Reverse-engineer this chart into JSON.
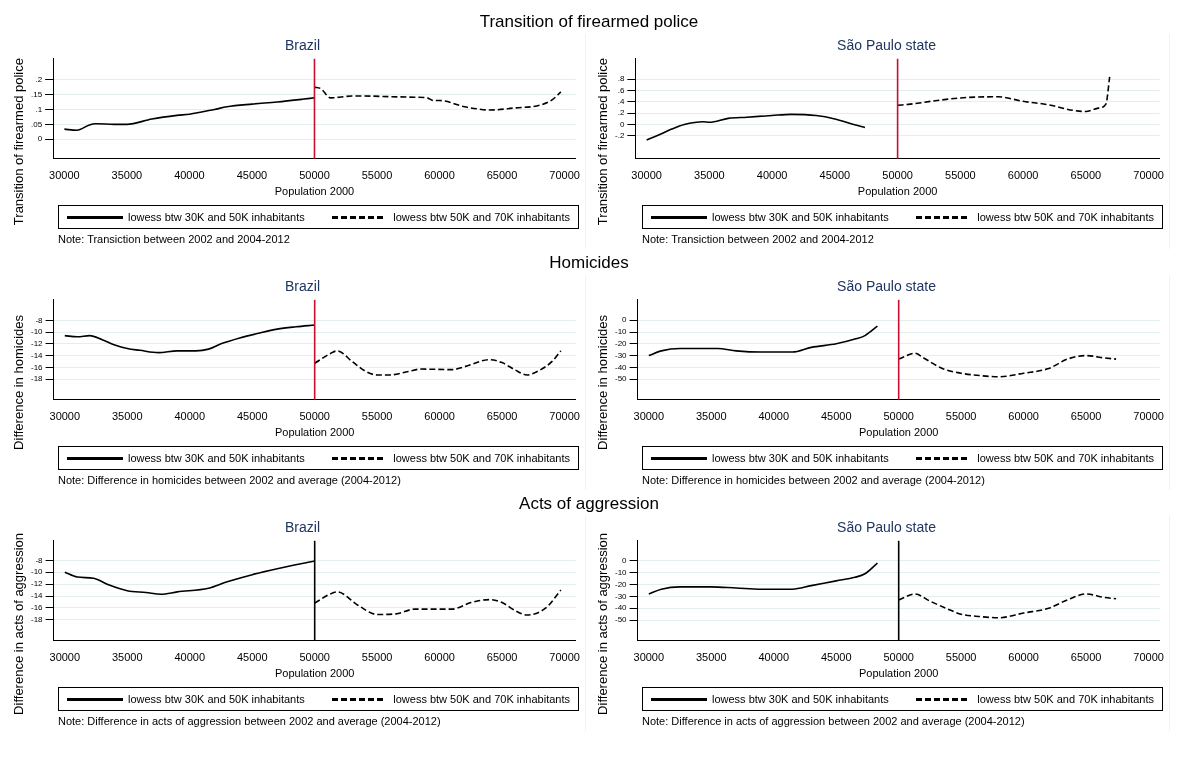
{
  "chart_data": [
    {
      "type": "line",
      "title": "Transition of firearmed police",
      "subtitle": "Brazil",
      "xlabel": "Population 2000",
      "ylabel": "Transition of firearmed police",
      "xlim": [
        29100,
        70900
      ],
      "xticks": [
        30000,
        35000,
        40000,
        45000,
        50000,
        55000,
        60000,
        65000,
        70000
      ],
      "ylim": [
        -0.065,
        0.27
      ],
      "yticks": [
        0,
        {
          "value": 0.05,
          "label": ".05"
        },
        {
          "value": 0.1,
          "label": ".1"
        },
        {
          "value": 0.15,
          "label": ".15"
        },
        {
          "value": 0.2,
          "label": ".2"
        }
      ],
      "grid": "y",
      "legend": "bottom",
      "annotations": [
        "Note: Transiction between 2002 and 2004-2012"
      ],
      "ref_lines": [
        {
          "axis": "x",
          "value": 50000,
          "color": "#c8102e"
        }
      ],
      "series": [
        {
          "name": "lowess btw 30K and 50K inhabitants",
          "color": "#000000",
          "line_style": "solid",
          "x": [
            30000,
            31000,
            32000,
            32500,
            34000,
            35000,
            37000,
            39000,
            40000,
            42000,
            43000,
            45000,
            47000,
            49000,
            50000
          ],
          "values": [
            0.034,
            0.03,
            0.048,
            0.052,
            0.05,
            0.05,
            0.068,
            0.08,
            0.084,
            0.1,
            0.109,
            0.118,
            0.125,
            0.134,
            0.139
          ]
        },
        {
          "name": "lowess btw 50K and 70K inhabitants",
          "color": "#000000",
          "line_style": "dashed",
          "x": [
            50000,
            50500,
            51300,
            53000,
            54000,
            56000,
            58000,
            59000,
            59500,
            60000,
            62000,
            63000,
            64000,
            66000,
            68000,
            69000,
            69700
          ],
          "values": [
            0.175,
            0.17,
            0.139,
            0.145,
            0.145,
            0.143,
            0.141,
            0.139,
            0.13,
            0.13,
            0.109,
            0.102,
            0.098,
            0.105,
            0.114,
            0.132,
            0.159
          ]
        }
      ]
    },
    {
      "type": "line",
      "subtitle": "São Paulo state",
      "xlabel": "Population 2000",
      "ylabel": "Transition of firearmed police",
      "xlim": [
        29100,
        70900
      ],
      "xticks": [
        30000,
        35000,
        40000,
        45000,
        50000,
        55000,
        60000,
        65000,
        70000
      ],
      "ylim": [
        -0.6,
        1.16
      ],
      "yticks": [
        {
          "value": -0.2,
          "label": "-.2"
        },
        0,
        {
          "value": 0.2,
          "label": ".2"
        },
        {
          "value": 0.4,
          "label": ".4"
        },
        {
          "value": 0.6,
          "label": ".6"
        },
        {
          "value": 0.8,
          "label": ".8"
        }
      ],
      "grid": "y",
      "legend": "bottom",
      "annotations": [
        "Note: Transiction between 2002 and 2004-2012"
      ],
      "ref_lines": [
        {
          "axis": "x",
          "value": 50000,
          "color": "#c8102e"
        }
      ],
      "series": [
        {
          "name": "lowess btw 30K and 50K inhabitants",
          "color": "#000000",
          "line_style": "solid",
          "x": [
            30000,
            31000,
            32000,
            33000,
            34500,
            35000,
            36500,
            38000,
            40000,
            41500,
            43500,
            45000,
            46500,
            47400
          ],
          "values": [
            -0.27,
            -0.18,
            -0.08,
            0,
            0.05,
            0.04,
            0.11,
            0.13,
            0.16,
            0.18,
            0.16,
            0.1,
            0,
            -0.05
          ]
        },
        {
          "name": "lowess btw 50K and 70K inhabitants",
          "color": "#000000",
          "line_style": "dashed",
          "x": [
            50000,
            51000,
            53000,
            55000,
            58000,
            60000,
            62000,
            64000,
            65000,
            66000,
            66600,
            66900
          ],
          "values": [
            0.34,
            0.36,
            0.42,
            0.47,
            0.49,
            0.41,
            0.35,
            0.25,
            0.23,
            0.29,
            0.36,
            0.84
          ]
        }
      ]
    },
    {
      "type": "line",
      "title": "Homicides",
      "subtitle": "Brazil",
      "xlabel": "Population 2000",
      "ylabel": "Difference in homicides",
      "xlim": [
        29100,
        70900
      ],
      "xticks": [
        30000,
        35000,
        40000,
        45000,
        50000,
        55000,
        60000,
        65000,
        70000
      ],
      "ylim": [
        -21.5,
        -4.5
      ],
      "yticks": [
        -18,
        -16,
        -14,
        -12,
        -10,
        -8
      ],
      "grid": "y",
      "legend": "bottom",
      "annotations": [
        "Note: Difference in homicides between 2002 and average (2004-2012)"
      ],
      "ref_lines": [
        {
          "axis": "x",
          "value": 50000,
          "color": "#c8102e"
        }
      ],
      "series": [
        {
          "name": "lowess btw 30K and 50K inhabitants",
          "color": "#000000",
          "line_style": "solid",
          "x": [
            30000,
            31000,
            32000,
            33000,
            34000,
            35000,
            36000,
            37500,
            39000,
            40500,
            41500,
            42500,
            44000,
            45500,
            47000,
            48500,
            50000
          ],
          "values": [
            -10.6,
            -10.8,
            -10.6,
            -11.3,
            -12.2,
            -12.8,
            -13.1,
            -13.5,
            -13.2,
            -13.2,
            -12.9,
            -12,
            -11,
            -10.2,
            -9.5,
            -9.1,
            -8.8
          ]
        },
        {
          "name": "lowess btw 50K and 70K inhabitants",
          "color": "#000000",
          "line_style": "dashed",
          "x": [
            50000,
            51300,
            51800,
            53000,
            54000,
            55000,
            56000,
            57500,
            58500,
            61000,
            62000,
            64000,
            65000,
            66000,
            67000,
            68000,
            69000,
            69700
          ],
          "values": [
            -15.3,
            -13.6,
            -13.2,
            -15,
            -16.6,
            -17.3,
            -17.3,
            -16.7,
            -16.3,
            -16.4,
            -15.9,
            -14.7,
            -15.2,
            -16.4,
            -17.3,
            -16.5,
            -15,
            -13.2
          ]
        }
      ]
    },
    {
      "type": "line",
      "subtitle": "São Paulo state",
      "xlabel": "Population 2000",
      "ylabel": "Difference in homicides",
      "xlim": [
        29100,
        70900
      ],
      "xticks": [
        30000,
        35000,
        40000,
        45000,
        50000,
        55000,
        60000,
        65000,
        70000
      ],
      "ylim": [
        -67.4,
        17.4
      ],
      "yticks": [
        -50,
        -40,
        -30,
        -20,
        -10,
        0
      ],
      "grid": "y",
      "legend": "bottom",
      "annotations": [
        "Note: Difference in homicides between 2002 and average (2004-2012)"
      ],
      "ref_lines": [
        {
          "axis": "x",
          "value": 50000,
          "color": "#c8102e"
        }
      ],
      "series": [
        {
          "name": "lowess btw 30K and 50K inhabitants",
          "color": "#000000",
          "line_style": "solid",
          "x": [
            30000,
            31000,
            32500,
            34000,
            35500,
            37000,
            39000,
            41500,
            43000,
            45000,
            46500,
            47300,
            48300
          ],
          "values": [
            -30,
            -26,
            -24,
            -24,
            -24,
            -26,
            -27,
            -27,
            -23,
            -20,
            -16,
            -13,
            -5
          ]
        },
        {
          "name": "lowess btw 50K and 70K inhabitants",
          "color": "#000000",
          "line_style": "dashed",
          "x": [
            50000,
            51300,
            52000,
            53500,
            55000,
            56500,
            58000,
            60000,
            62000,
            63500,
            65000,
            66500,
            67400
          ],
          "values": [
            -33,
            -28,
            -32,
            -41,
            -45,
            -47,
            -48,
            -45,
            -41,
            -33,
            -30,
            -32,
            -33
          ]
        }
      ]
    },
    {
      "type": "line",
      "title": "Acts of aggression",
      "subtitle": "Brazil",
      "xlabel": "Population 2000",
      "ylabel": "Difference in acts of aggression",
      "xlim": [
        29100,
        70900
      ],
      "xticks": [
        30000,
        35000,
        40000,
        45000,
        50000,
        55000,
        60000,
        65000,
        70000
      ],
      "ylim": [
        -21.5,
        -4.7
      ],
      "yticks": [
        -18,
        -16,
        -14,
        -12,
        -10,
        -8
      ],
      "grid": "y",
      "legend": "bottom",
      "annotations": [
        "Note: Difference in acts of aggression between 2002 and average (2004-2012)"
      ],
      "ref_lines": [
        {
          "axis": "x",
          "value": 50000,
          "color": "#000000"
        }
      ],
      "series": [
        {
          "name": "lowess btw 30K and 50K inhabitants",
          "color": "#000000",
          "line_style": "solid",
          "x": [
            30000,
            31000,
            32300,
            33500,
            35000,
            36500,
            37700,
            39000,
            41500,
            43000,
            45000,
            47000,
            50000
          ],
          "values": [
            -10,
            -10.8,
            -11,
            -12.1,
            -13.1,
            -13.4,
            -13.7,
            -13.3,
            -12.7,
            -11.6,
            -10.4,
            -9.4,
            -8.1
          ]
        },
        {
          "name": "lowess btw 50K and 70K inhabitants",
          "color": "#000000",
          "line_style": "dashed",
          "x": [
            50000,
            51300,
            51800,
            53500,
            55000,
            56500,
            58000,
            61000,
            62500,
            64000,
            65000,
            66000,
            67000,
            68500,
            69700
          ],
          "values": [
            -15.2,
            -13.6,
            -13.3,
            -15.6,
            -17.1,
            -17,
            -16.2,
            -16.2,
            -15.1,
            -14.6,
            -15.1,
            -16.4,
            -17.2,
            -16,
            -13
          ]
        }
      ]
    },
    {
      "type": "line",
      "subtitle": "São Paulo state",
      "xlabel": "Population 2000",
      "ylabel": "Difference in acts of aggression",
      "xlim": [
        29100,
        70900
      ],
      "xticks": [
        30000,
        35000,
        40000,
        45000,
        50000,
        55000,
        60000,
        65000,
        70000
      ],
      "ylim": [
        -67.2,
        16.7
      ],
      "yticks": [
        -50,
        -40,
        -30,
        -20,
        -10,
        0
      ],
      "grid": "y",
      "legend": "bottom",
      "annotations": [
        "Note: Difference in acts of aggression between 2002 and average (2004-2012)"
      ],
      "ref_lines": [
        {
          "axis": "x",
          "value": 50000,
          "color": "#000000"
        }
      ],
      "series": [
        {
          "name": "lowess btw 30K and 50K inhabitants",
          "color": "#000000",
          "line_style": "solid",
          "x": [
            30000,
            31000,
            32500,
            35000,
            37000,
            39000,
            41500,
            43000,
            45000,
            46500,
            47300,
            48300
          ],
          "values": [
            -28,
            -24,
            -22,
            -22,
            -23,
            -24,
            -24,
            -21,
            -17,
            -14,
            -11,
            -2
          ]
        },
        {
          "name": "lowess btw 50K and 70K inhabitants",
          "color": "#000000",
          "line_style": "dashed",
          "x": [
            50000,
            51300,
            52500,
            54000,
            55000,
            56500,
            58000,
            60000,
            62000,
            63500,
            65000,
            66500,
            67400
          ],
          "values": [
            -33,
            -28,
            -34,
            -41,
            -45,
            -47,
            -48,
            -44,
            -40,
            -33,
            -28,
            -31,
            -32
          ]
        }
      ]
    }
  ]
}
